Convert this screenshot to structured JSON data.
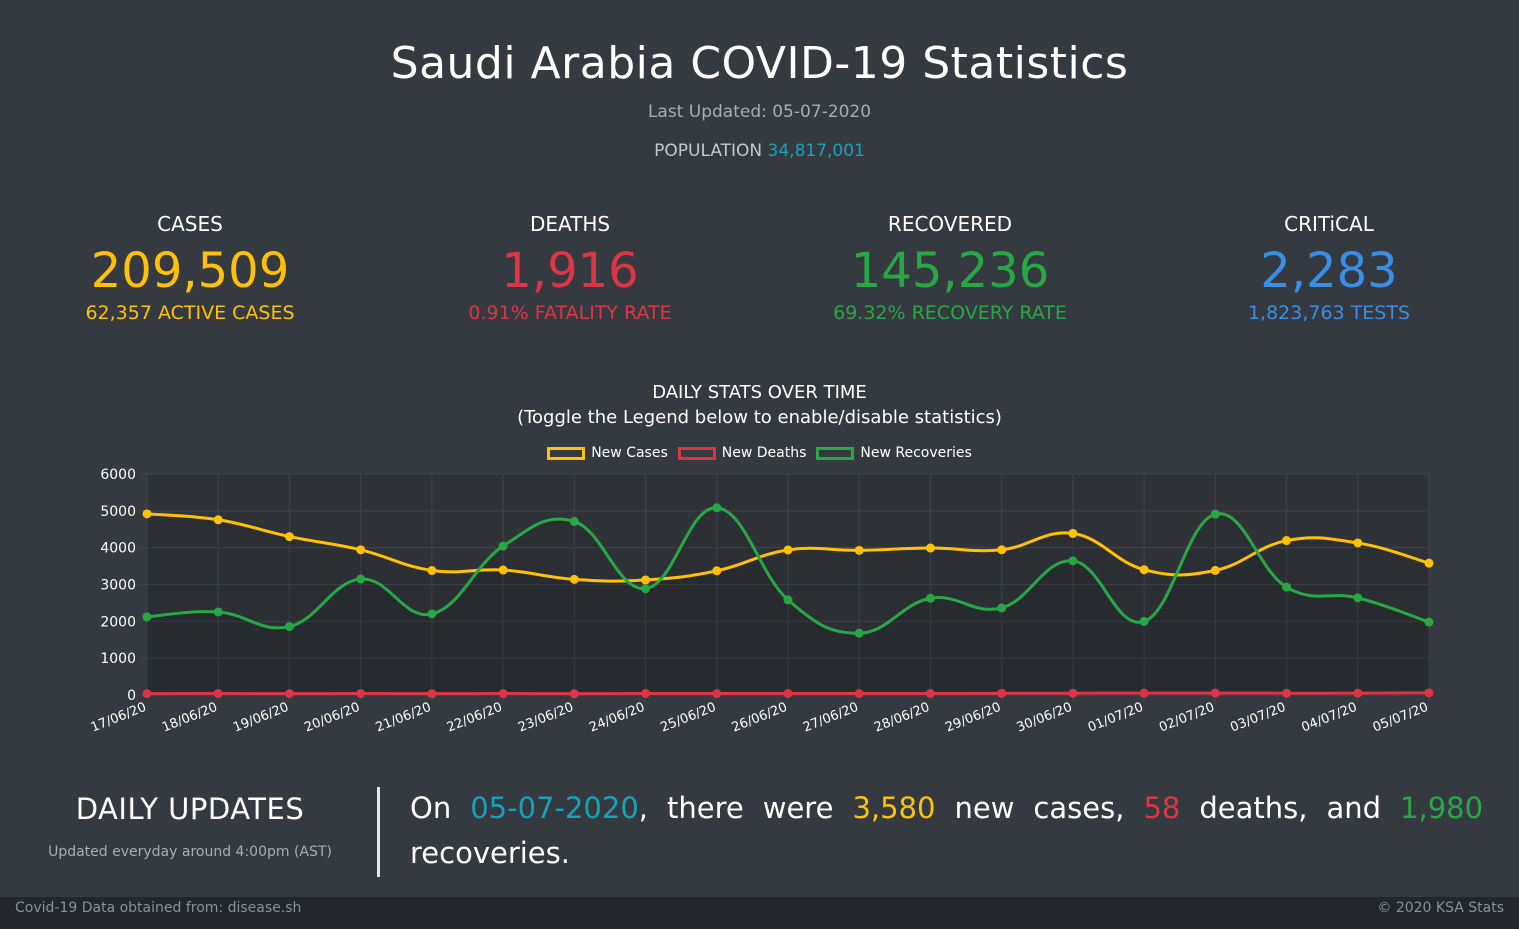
{
  "title": "Saudi Arabia COVID-19 Statistics",
  "last_updated_label": "Last Updated: 05-07-2020",
  "population": {
    "label": "POPULATION",
    "value": "34,817,001"
  },
  "stats": {
    "cases": {
      "label": "CASES",
      "value": "209,509",
      "sub": "62,357 ACTIVE CASES",
      "color": "#ffc107"
    },
    "deaths": {
      "label": "DEATHS",
      "value": "1,916",
      "sub": "0.91% FATALITY RATE",
      "color": "#dc3545"
    },
    "recovered": {
      "label": "RECOVERED",
      "value": "145,236",
      "sub": "69.32% RECOVERY RATE",
      "color": "#28a745"
    },
    "critical": {
      "label": "CRITiCAL",
      "value": "2,283",
      "sub": "1,823,763 TESTS",
      "color": "#3a8ee6"
    }
  },
  "chart": {
    "title_line1": "DAILY STATS OVER TIME",
    "title_line2": "(Toggle the Legend below to enable/disable statistics)"
  },
  "chart_data": {
    "type": "line",
    "title": "DAILY STATS OVER TIME",
    "x": [
      "17/06/20",
      "18/06/20",
      "19/06/20",
      "20/06/20",
      "21/06/20",
      "22/06/20",
      "23/06/20",
      "24/06/20",
      "25/06/20",
      "26/06/20",
      "27/06/20",
      "28/06/20",
      "29/06/20",
      "30/06/20",
      "01/07/20",
      "02/07/20",
      "03/07/20",
      "04/07/20",
      "05/07/20"
    ],
    "series": [
      {
        "name": "New Cases",
        "color": "#ffc107",
        "values": [
          4919,
          4757,
          4301,
          3941,
          3379,
          3393,
          3139,
          3123,
          3372,
          3938,
          3927,
          3990,
          3943,
          4387,
          3402,
          3383,
          4193,
          4128,
          3580
        ]
      },
      {
        "name": "New Deaths",
        "color": "#dc3545",
        "values": [
          39,
          40,
          36,
          40,
          37,
          40,
          37,
          41,
          40,
          41,
          40,
          40,
          45,
          49,
          50,
          52,
          49,
          50,
          58
        ]
      },
      {
        "name": "New Recoveries",
        "color": "#28a745",
        "values": [
          2122,
          2254,
          1858,
          3148,
          2200,
          4042,
          4710,
          2889,
          5083,
          2581,
          1678,
          2626,
          2365,
          3642,
          1998,
          4910,
          2929,
          2637,
          1980
        ]
      }
    ],
    "ylim": [
      0,
      6000
    ],
    "yticks": [
      0,
      1000,
      2000,
      3000,
      4000,
      5000,
      6000
    ],
    "grid": true,
    "legend": "top"
  },
  "daily": {
    "title": "DAILY UPDATES",
    "note": "Updated everyday around 4:00pm (AST)",
    "prefix": "On",
    "date": "05-07-2020",
    "text1": ", there were",
    "cases": "3,580",
    "text2": "new cases,",
    "deaths": "58",
    "text3": "deaths, and",
    "recoveries": "1,980",
    "text4": "recoveries."
  },
  "footer": {
    "source": "Covid-19 Data obtained from: disease.sh",
    "copyright": "© 2020 KSA Stats"
  }
}
